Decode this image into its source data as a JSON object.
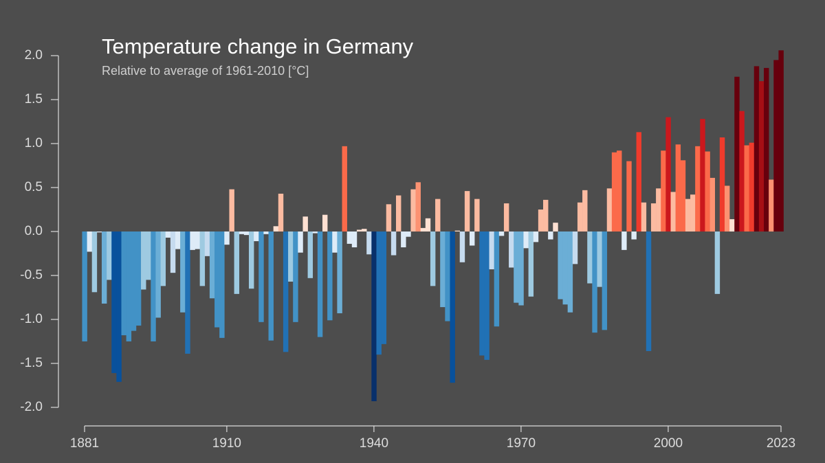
{
  "chart_data": {
    "type": "bar",
    "title": "Temperature change in Germany",
    "subtitle": "Relative to average of 1961-2010  [°C]",
    "x": [
      1881,
      1882,
      1883,
      1884,
      1885,
      1886,
      1887,
      1888,
      1889,
      1890,
      1891,
      1892,
      1893,
      1894,
      1895,
      1896,
      1897,
      1898,
      1899,
      1900,
      1901,
      1902,
      1903,
      1904,
      1905,
      1906,
      1907,
      1908,
      1909,
      1910,
      1911,
      1912,
      1913,
      1914,
      1915,
      1916,
      1917,
      1918,
      1919,
      1920,
      1921,
      1922,
      1923,
      1924,
      1925,
      1926,
      1927,
      1928,
      1929,
      1930,
      1931,
      1932,
      1933,
      1934,
      1935,
      1936,
      1937,
      1938,
      1939,
      1940,
      1941,
      1942,
      1943,
      1944,
      1945,
      1946,
      1947,
      1948,
      1949,
      1950,
      1951,
      1952,
      1953,
      1954,
      1955,
      1956,
      1957,
      1958,
      1959,
      1960,
      1961,
      1962,
      1963,
      1964,
      1965,
      1966,
      1967,
      1968,
      1969,
      1970,
      1971,
      1972,
      1973,
      1974,
      1975,
      1976,
      1977,
      1978,
      1979,
      1980,
      1981,
      1982,
      1983,
      1984,
      1985,
      1986,
      1987,
      1988,
      1989,
      1990,
      1991,
      1992,
      1993,
      1994,
      1995,
      1996,
      1997,
      1998,
      1999,
      2000,
      2001,
      2002,
      2003,
      2004,
      2005,
      2006,
      2007,
      2008,
      2009,
      2010,
      2011,
      2012,
      2013,
      2014,
      2015,
      2016,
      2017,
      2018,
      2019,
      2020,
      2021,
      2022,
      2023
    ],
    "values": [
      -1.25,
      -0.23,
      -0.69,
      -0.01,
      -0.82,
      -0.55,
      -1.61,
      -1.71,
      -1.18,
      -1.25,
      -1.13,
      -1.07,
      -0.66,
      -0.55,
      -1.25,
      -0.98,
      -0.62,
      -0.07,
      -0.47,
      -0.2,
      -0.92,
      -1.39,
      -0.21,
      -0.2,
      -0.62,
      -0.28,
      -0.76,
      -1.09,
      -1.21,
      -0.15,
      0.48,
      -0.71,
      -0.03,
      -0.04,
      -0.65,
      -0.11,
      -1.03,
      -0.03,
      -1.24,
      0.06,
      0.43,
      -1.37,
      -0.57,
      -1.03,
      -0.24,
      0.17,
      -0.53,
      -0.02,
      -1.2,
      0.19,
      -1.01,
      -0.24,
      -0.93,
      0.97,
      -0.14,
      -0.18,
      0.02,
      0.03,
      -0.26,
      -1.93,
      -1.4,
      -1.28,
      0.31,
      -0.27,
      0.41,
      -0.18,
      -0.06,
      0.48,
      0.56,
      0.04,
      0.15,
      -0.62,
      0.37,
      -0.86,
      -1.02,
      -1.72,
      0.01,
      -0.35,
      0.46,
      -0.16,
      0.37,
      -1.41,
      -1.46,
      -0.43,
      -1.08,
      -0.05,
      0.32,
      -0.41,
      -0.81,
      -0.84,
      -0.19,
      -0.74,
      -0.12,
      0.25,
      0.36,
      -0.09,
      0.1,
      -0.77,
      -0.83,
      -0.92,
      -0.37,
      0.33,
      0.47,
      -0.59,
      -1.15,
      -0.63,
      -1.12,
      0.49,
      0.9,
      0.92,
      -0.21,
      0.8,
      -0.09,
      1.13,
      0.33,
      -1.36,
      0.32,
      0.49,
      0.92,
      1.3,
      0.45,
      0.99,
      0.81,
      0.37,
      0.42,
      0.97,
      1.28,
      0.91,
      0.61,
      -0.71,
      1.07,
      0.52,
      0.14,
      1.76,
      1.37,
      0.98,
      1.01,
      1.88,
      1.71,
      1.86,
      0.59,
      1.95,
      2.06
    ],
    "colormap": [
      "#08306b",
      "#08519c",
      "#2171b5",
      "#4292c6",
      "#6baed6",
      "#9ecae1",
      "#c6dbef",
      "#deebf7",
      "#fee0d2",
      "#fcbba1",
      "#fc9272",
      "#fb6a4a",
      "#ef3b2c",
      "#cb181d",
      "#a50f15",
      "#67000d"
    ],
    "xlim": [
      1881,
      2023
    ],
    "xticks": [
      1881,
      1910,
      1940,
      1970,
      2000,
      2023
    ],
    "ylim": [
      -2,
      2
    ],
    "yticks": [
      {
        "value": 2,
        "label": "2.0"
      },
      {
        "value": 1.5,
        "label": "1.5"
      },
      {
        "value": 1,
        "label": "1.0"
      },
      {
        "value": 0.5,
        "label": "0.5"
      },
      {
        "value": 0,
        "label": "0.0"
      },
      {
        "value": -0.5,
        "label": "-0.5"
      },
      {
        "value": -1,
        "label": "-1.0"
      },
      {
        "value": -1.5,
        "label": "-1.5"
      },
      {
        "value": -2,
        "label": "-2.0"
      }
    ],
    "grid": false
  }
}
